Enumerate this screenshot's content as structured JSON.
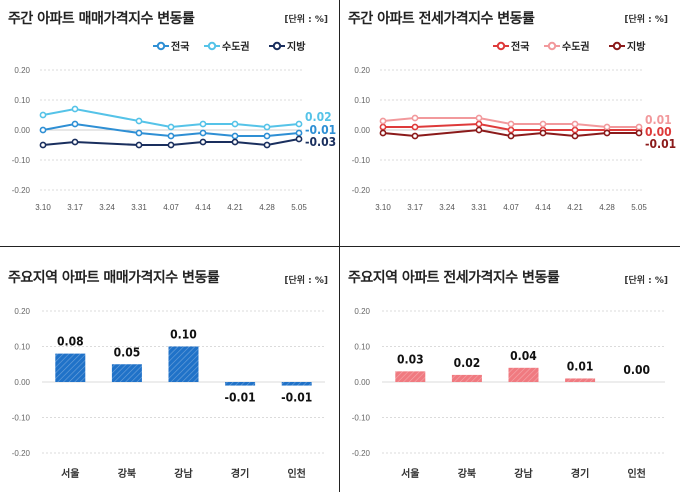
{
  "colors": {
    "blue_nat": "#2e8fd4",
    "blue_cap": "#55c3e8",
    "blue_reg": "#1a2f5e",
    "red_nat": "#de3a3a",
    "red_cap": "#f2999c",
    "red_reg": "#8b1a1a",
    "bar_blue": "#2072c8",
    "bar_red": "#f07a80"
  },
  "panels": [
    {
      "title": "주간 아파트 매매가격지수 변동률",
      "unit": "[단위 : %]"
    },
    {
      "title": "주간 아파트 전세가격지수 변동률",
      "unit": "[단위 : %]"
    },
    {
      "title": "주요지역 아파트 매매가격지수 변동률",
      "unit": "[단위 : %]"
    },
    {
      "title": "주요지역 아파트 전세가격지수 변동률",
      "unit": "[단위 : %]"
    }
  ],
  "chart_data": [
    {
      "type": "line",
      "x": [
        "3.10",
        "3.17",
        "3.24",
        "3.31",
        "4.07",
        "4.14",
        "4.21",
        "4.28",
        "5.05"
      ],
      "yticks": [
        "0.20",
        "0.10",
        "0.00",
        "-0.10",
        "-0.20"
      ],
      "ylim": [
        -0.2,
        0.2
      ],
      "legend_position": "top-right",
      "series": [
        {
          "name": "전국",
          "values": [
            0.0,
            0.02,
            null,
            -0.01,
            -0.02,
            -0.01,
            -0.02,
            -0.02,
            -0.01
          ],
          "end_label": "-0.01"
        },
        {
          "name": "수도권",
          "values": [
            0.05,
            0.07,
            null,
            0.03,
            0.01,
            0.02,
            0.02,
            0.01,
            0.02
          ],
          "end_label": "0.02"
        },
        {
          "name": "지방",
          "values": [
            -0.05,
            -0.04,
            null,
            -0.05,
            -0.05,
            -0.04,
            -0.04,
            -0.05,
            -0.03
          ],
          "end_label": "-0.03"
        }
      ]
    },
    {
      "type": "line",
      "x": [
        "3.10",
        "3.17",
        "3.24",
        "3.31",
        "4.07",
        "4.14",
        "4.21",
        "4.28",
        "5.05"
      ],
      "yticks": [
        "0.20",
        "0.10",
        "0.00",
        "-0.10",
        "-0.20"
      ],
      "ylim": [
        -0.2,
        0.2
      ],
      "legend_position": "top-right",
      "series": [
        {
          "name": "전국",
          "values": [
            0.01,
            0.01,
            null,
            0.02,
            0.0,
            0.0,
            0.0,
            0.0,
            0.0
          ],
          "end_label": "0.00"
        },
        {
          "name": "수도권",
          "values": [
            0.03,
            0.04,
            null,
            0.04,
            0.02,
            0.02,
            0.02,
            0.01,
            0.01
          ],
          "end_label": "0.01"
        },
        {
          "name": "지방",
          "values": [
            -0.01,
            -0.02,
            null,
            0.0,
            -0.02,
            -0.01,
            -0.02,
            -0.01,
            -0.01
          ],
          "end_label": "-0.01"
        }
      ]
    },
    {
      "type": "bar",
      "categories": [
        "서울",
        "강북",
        "강남",
        "경기",
        "인천"
      ],
      "values": [
        0.08,
        0.05,
        0.1,
        -0.01,
        -0.01
      ],
      "labels": [
        "0.08",
        "0.05",
        "0.10",
        "-0.01",
        "-0.01"
      ],
      "yticks": [
        "0.20",
        "0.10",
        "0.00",
        "-0.10",
        "-0.20"
      ],
      "ylim": [
        -0.2,
        0.2
      ]
    },
    {
      "type": "bar",
      "categories": [
        "서울",
        "강북",
        "강남",
        "경기",
        "인천"
      ],
      "values": [
        0.03,
        0.02,
        0.04,
        0.01,
        0.0
      ],
      "labels": [
        "0.03",
        "0.02",
        "0.04",
        "0.01",
        "0.00"
      ],
      "yticks": [
        "0.20",
        "0.10",
        "0.00",
        "-0.10",
        "-0.20"
      ],
      "ylim": [
        -0.2,
        0.2
      ]
    }
  ]
}
